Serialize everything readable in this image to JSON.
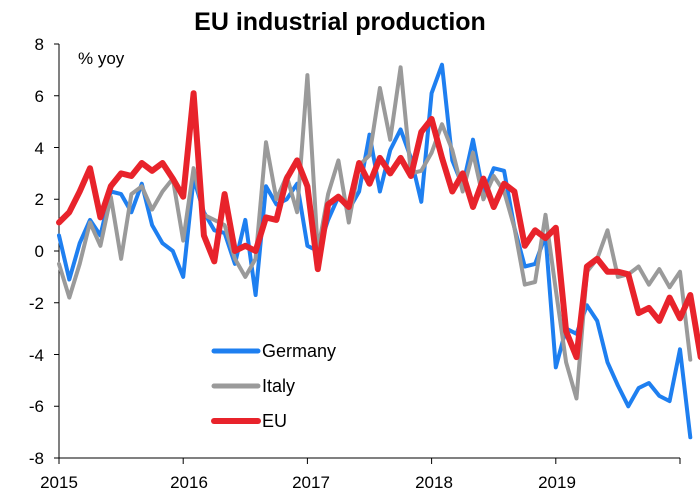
{
  "chart_data": {
    "type": "line",
    "title": "EU industrial production",
    "unit_label": "% yoy",
    "ylim": [
      -8,
      8
    ],
    "yticks": [
      "8",
      "6",
      "4",
      "2",
      "0",
      "-2",
      "-4",
      "-6",
      "-8"
    ],
    "xlim": [
      0,
      60
    ],
    "xticks": [
      "2015",
      "2016",
      "2017",
      "2018",
      "2019"
    ],
    "grid": false,
    "legend_position": "lower-left",
    "series": [
      {
        "name": "Germany",
        "color": "#1E7FF0",
        "values": [
          0.6,
          -1.1,
          0.3,
          1.2,
          0.6,
          2.3,
          2.2,
          1.5,
          2.6,
          1.0,
          0.3,
          0.0,
          -1.0,
          2.8,
          1.5,
          0.8,
          0.7,
          -0.5,
          1.2,
          -1.7,
          2.5,
          1.8,
          2.0,
          2.6,
          0.2,
          0.0,
          1.2,
          2.1,
          1.6,
          2.3,
          4.5,
          2.3,
          3.9,
          4.7,
          3.6,
          1.9,
          6.1,
          7.2,
          3.5,
          2.5,
          4.3,
          2.2,
          3.2,
          3.1,
          0.9,
          -0.6,
          -0.5,
          0.6,
          -4.5,
          -3.0,
          -3.2,
          -2.1,
          -2.7,
          -4.3,
          -5.2,
          -6.0,
          -5.3,
          -5.1,
          -5.6,
          -5.8,
          -3.8,
          -7.2
        ]
      },
      {
        "name": "Italy",
        "color": "#9A9A9A",
        "values": [
          -0.5,
          -1.8,
          -0.5,
          1.1,
          0.2,
          2.1,
          -0.3,
          2.2,
          2.5,
          1.6,
          2.3,
          2.8,
          0.4,
          3.2,
          1.4,
          1.2,
          1.0,
          -0.3,
          -1.0,
          -0.3,
          4.2,
          2.0,
          2.9,
          1.5,
          6.8,
          0.0,
          2.2,
          3.5,
          1.1,
          3.3,
          3.7,
          6.3,
          4.3,
          7.1,
          3.0,
          3.1,
          3.8,
          4.9,
          3.9,
          2.3,
          3.8,
          2.0,
          2.9,
          2.3,
          0.9,
          -1.3,
          -1.2,
          1.4,
          -1.5,
          -4.3,
          -5.7,
          -0.8,
          -0.3,
          0.8,
          -1.0,
          -0.9,
          -0.6,
          -1.3,
          -0.7,
          -1.4,
          -0.8,
          -4.2
        ]
      },
      {
        "name": "EU",
        "color": "#E8232B",
        "values": [
          1.1,
          1.5,
          2.3,
          3.2,
          1.3,
          2.5,
          3.0,
          2.9,
          3.4,
          3.1,
          3.4,
          2.8,
          2.1,
          6.1,
          0.6,
          -0.4,
          2.2,
          0.0,
          0.2,
          0.0,
          1.3,
          1.2,
          2.8,
          3.5,
          2.5,
          -0.7,
          1.8,
          2.1,
          1.7,
          3.4,
          2.6,
          3.6,
          3.0,
          3.6,
          2.9,
          4.6,
          5.1,
          3.6,
          2.3,
          3.0,
          1.7,
          2.8,
          1.7,
          2.6,
          2.3,
          0.2,
          0.8,
          0.5,
          0.9,
          -3.1,
          -4.1,
          -0.6,
          -0.3,
          -0.8,
          -0.8,
          -0.9,
          -2.4,
          -2.2,
          -2.7,
          -1.8,
          -2.6,
          -1.7,
          -4.1
        ]
      }
    ]
  }
}
